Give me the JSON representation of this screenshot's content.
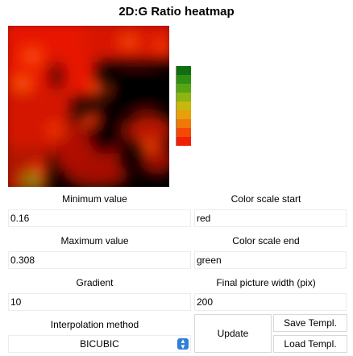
{
  "title": "2D:G Ratio heatmap",
  "fields": {
    "min_label": "Minimum value",
    "min_value": "0.16",
    "max_label": "Maximum value",
    "max_value": "0.308",
    "gradient_label": "Gradient",
    "gradient_value": "10",
    "interp_label": "Interpolation method",
    "interp_value": "BICUBIC",
    "scale_start_label": "Color scale start",
    "scale_start_value": "red",
    "scale_end_label": "Color scale end",
    "scale_end_value": "green",
    "width_label": "Final picture width (pix)",
    "width_value": "200"
  },
  "buttons": {
    "update": "Update",
    "save_template": "Save Templ.",
    "load_template": "Load Templ."
  },
  "colors": {
    "scale": [
      "#0f6e0f",
      "#2e8f12",
      "#58a514",
      "#8cb412",
      "#c8b80c",
      "#e8a00a",
      "#f07808",
      "#f44a06",
      "#f02004"
    ]
  }
}
